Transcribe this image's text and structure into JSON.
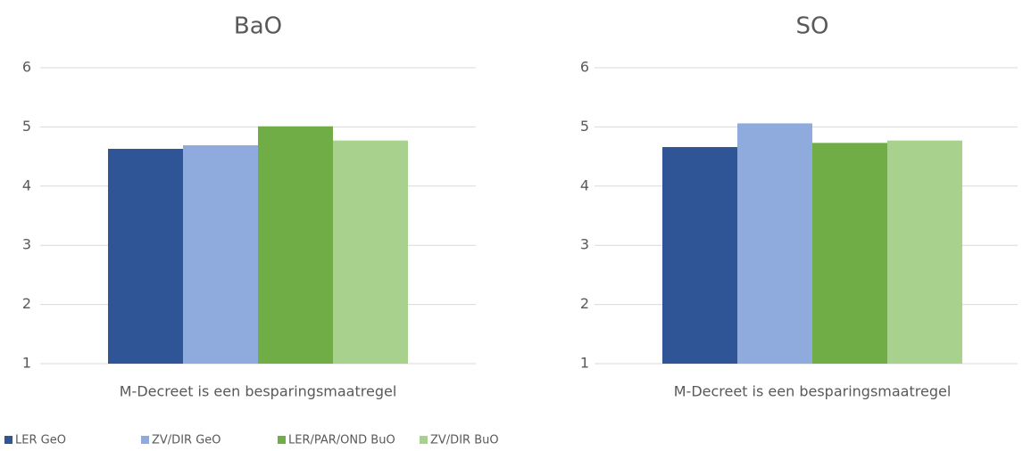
{
  "chart_data": [
    {
      "type": "bar",
      "title": "BaO",
      "categories": [
        "M-Decreet is een besparingsmaatregel"
      ],
      "series": [
        {
          "name": "LER GeO",
          "color": "#2f5597",
          "values": [
            4.63
          ]
        },
        {
          "name": "ZV/DIR GeO",
          "color": "#8faadc",
          "values": [
            4.69
          ]
        },
        {
          "name": "LER/PAR/OND BuO",
          "color": "#70ad47",
          "values": [
            5.01
          ]
        },
        {
          "name": "ZV/DIR BuO",
          "color": "#a9d18e",
          "values": [
            4.77
          ]
        }
      ],
      "ylim": [
        1,
        6
      ],
      "yticks": [
        1,
        2,
        3,
        4,
        5,
        6
      ],
      "grid": true,
      "legend": "bottom"
    },
    {
      "type": "bar",
      "title": "SO",
      "categories": [
        "M-Decreet is een besparingsmaatregel"
      ],
      "series": [
        {
          "color": "#2f5597",
          "values": [
            4.66
          ]
        },
        {
          "color": "#8faadc",
          "values": [
            5.06
          ]
        },
        {
          "color": "#70ad47",
          "values": [
            4.73
          ]
        },
        {
          "color": "#a9d18e",
          "values": [
            4.77
          ]
        }
      ],
      "ylim": [
        1,
        6
      ],
      "yticks": [
        1,
        2,
        3,
        4,
        5,
        6
      ],
      "grid": true
    }
  ]
}
